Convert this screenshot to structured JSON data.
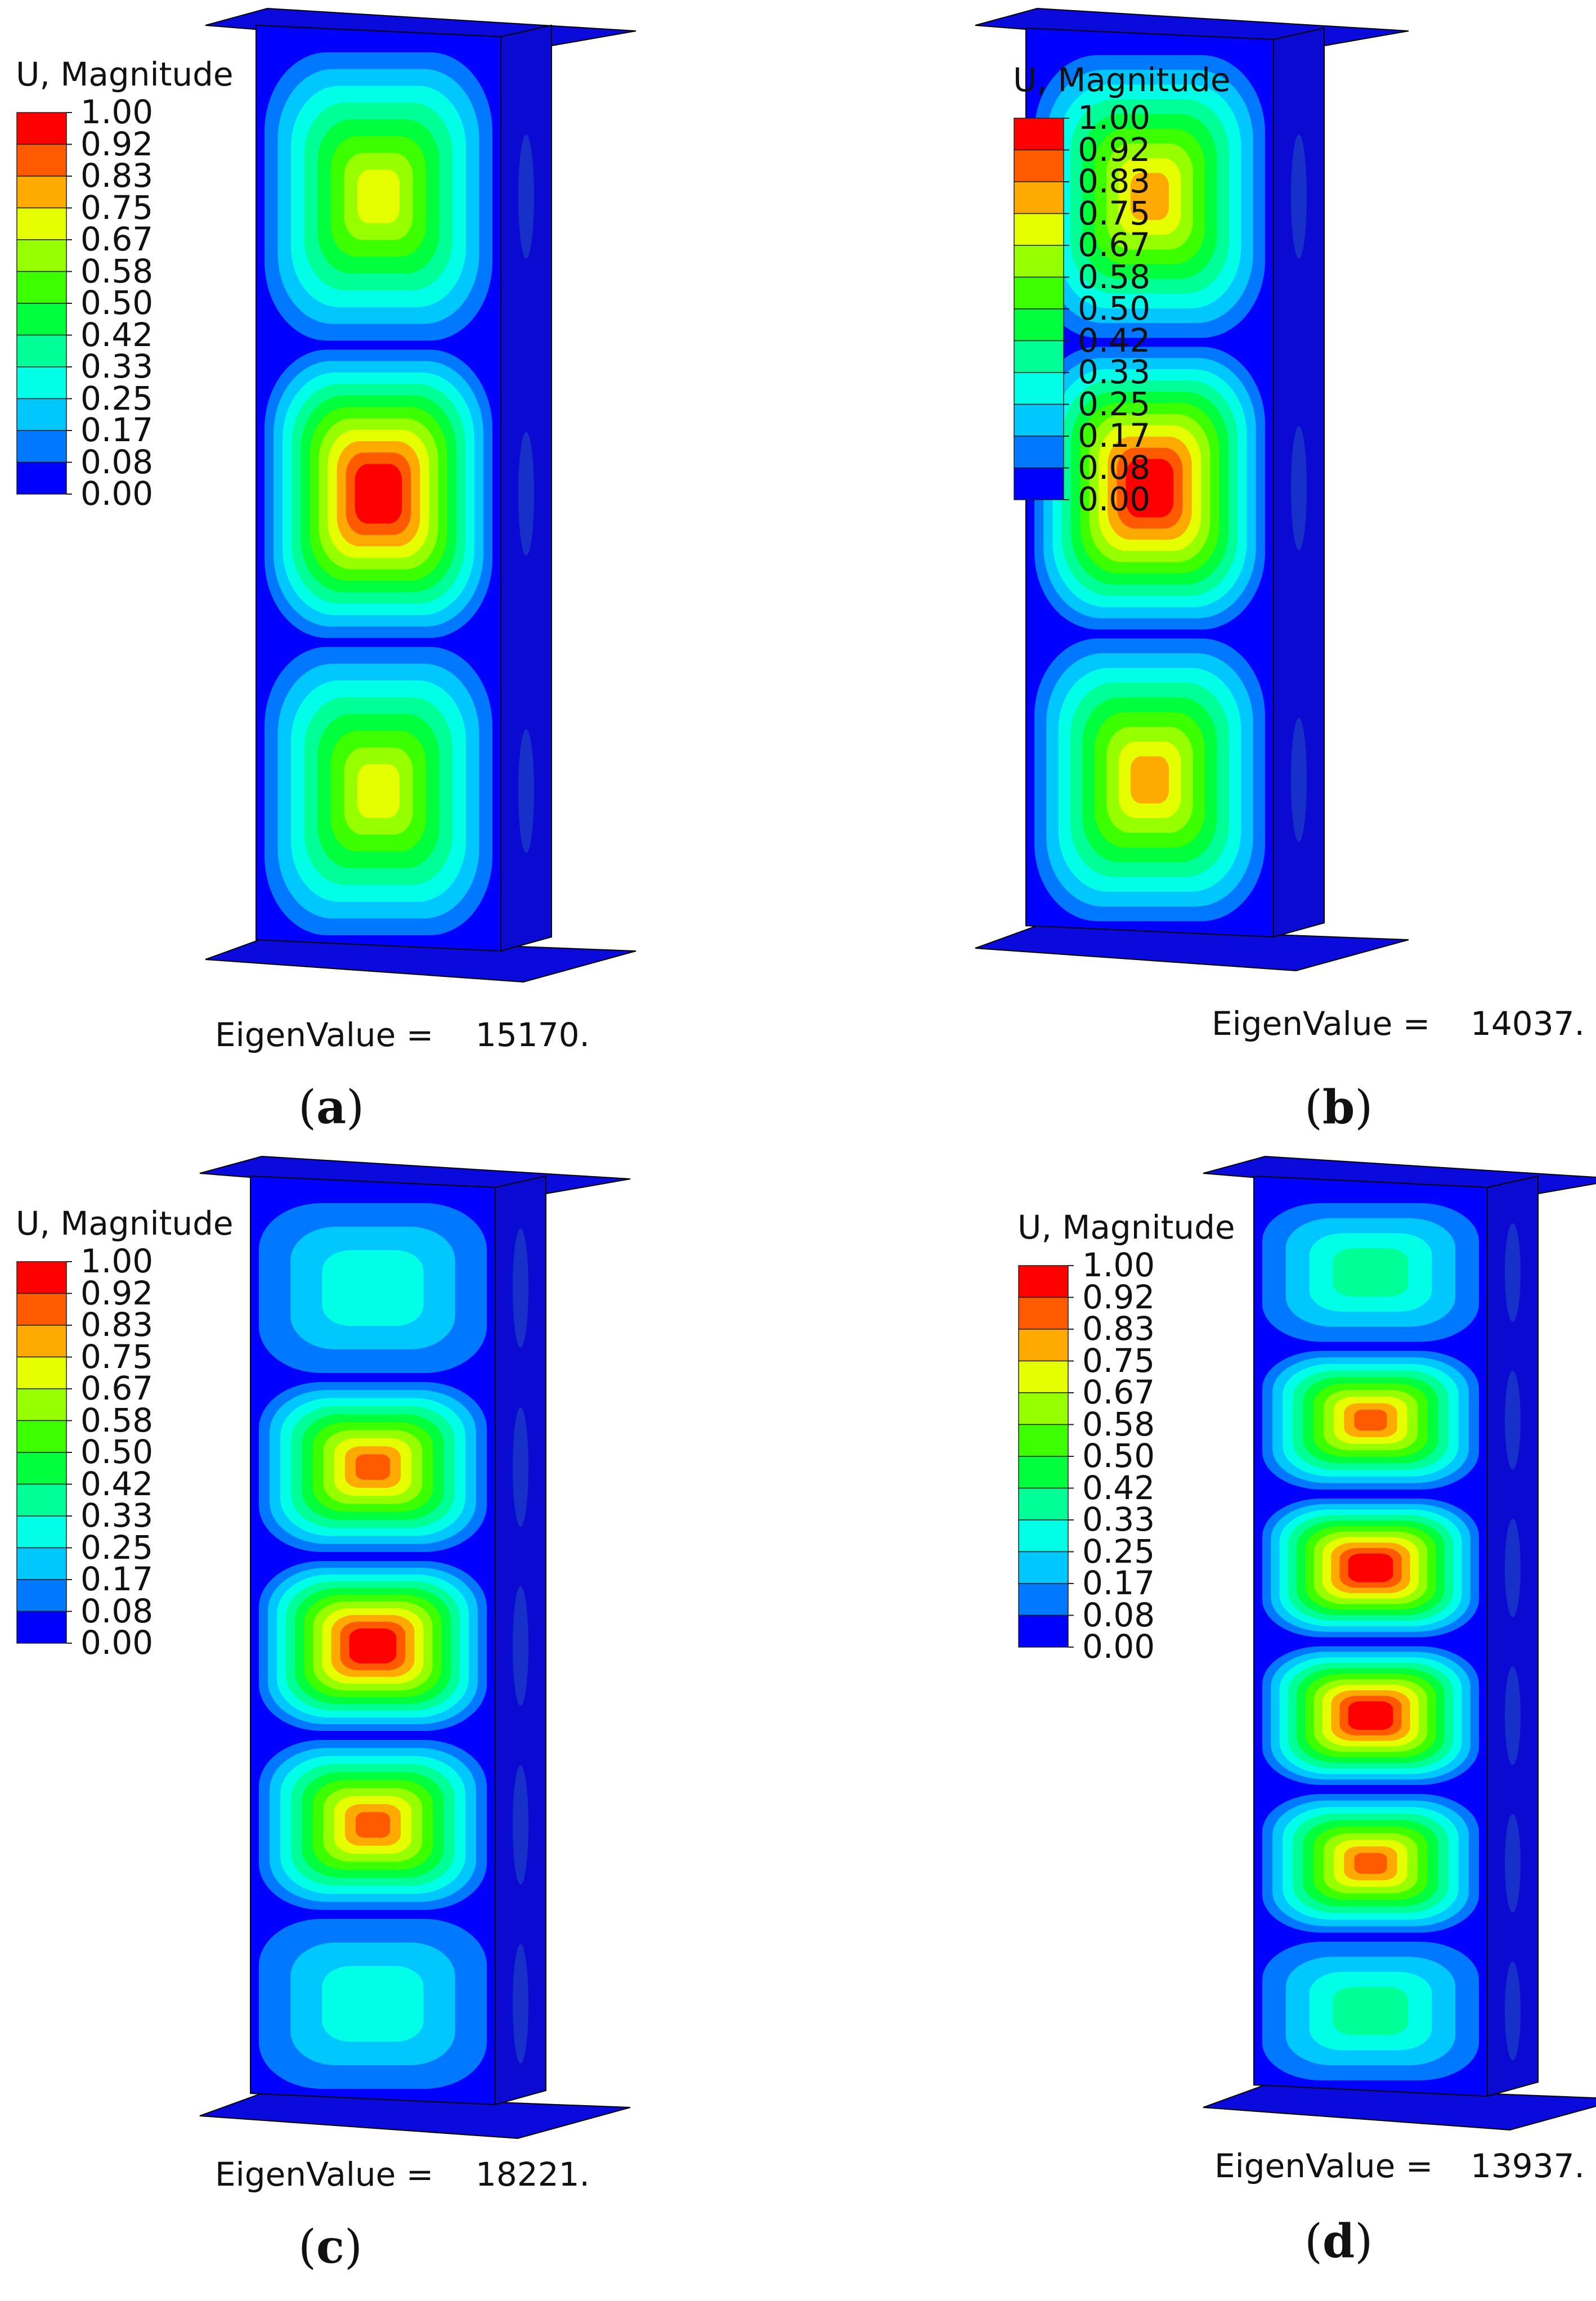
{
  "legend": {
    "title": "U, Magnitude",
    "levels": [
      "1.00",
      "0.92",
      "0.83",
      "0.75",
      "0.67",
      "0.58",
      "0.50",
      "0.42",
      "0.33",
      "0.25",
      "0.17",
      "0.08",
      "0.00"
    ],
    "colors": [
      "#ff0000",
      "#ff5a00",
      "#ffaa00",
      "#e6ff00",
      "#96ff00",
      "#3cff00",
      "#00ff3c",
      "#00ff96",
      "#00ffe6",
      "#00c8ff",
      "#0078ff",
      "#0000ff"
    ]
  },
  "eigen_label": "EigenValue =",
  "panels": [
    {
      "id": "a",
      "eigenvalue": "15170.",
      "label_open": "(",
      "label_letter": "a",
      "label_close": ")",
      "peaks": [
        0.67,
        1.0,
        0.67
      ]
    },
    {
      "id": "b",
      "eigenvalue": "14037.",
      "label_open": "(",
      "label_letter": "b",
      "label_close": ")",
      "peaks": [
        0.75,
        1.0,
        0.75
      ]
    },
    {
      "id": "c",
      "eigenvalue": "18221.",
      "label_open": "(",
      "label_letter": "c",
      "label_close": ")",
      "peaks": [
        0.25,
        0.83,
        1.0,
        0.83,
        0.25
      ]
    },
    {
      "id": "d",
      "eigenvalue": "13937.",
      "label_open": "(",
      "label_letter": "d",
      "label_close": ")",
      "peaks": [
        0.33,
        0.83,
        1.0,
        1.0,
        0.83,
        0.33
      ]
    }
  ]
}
